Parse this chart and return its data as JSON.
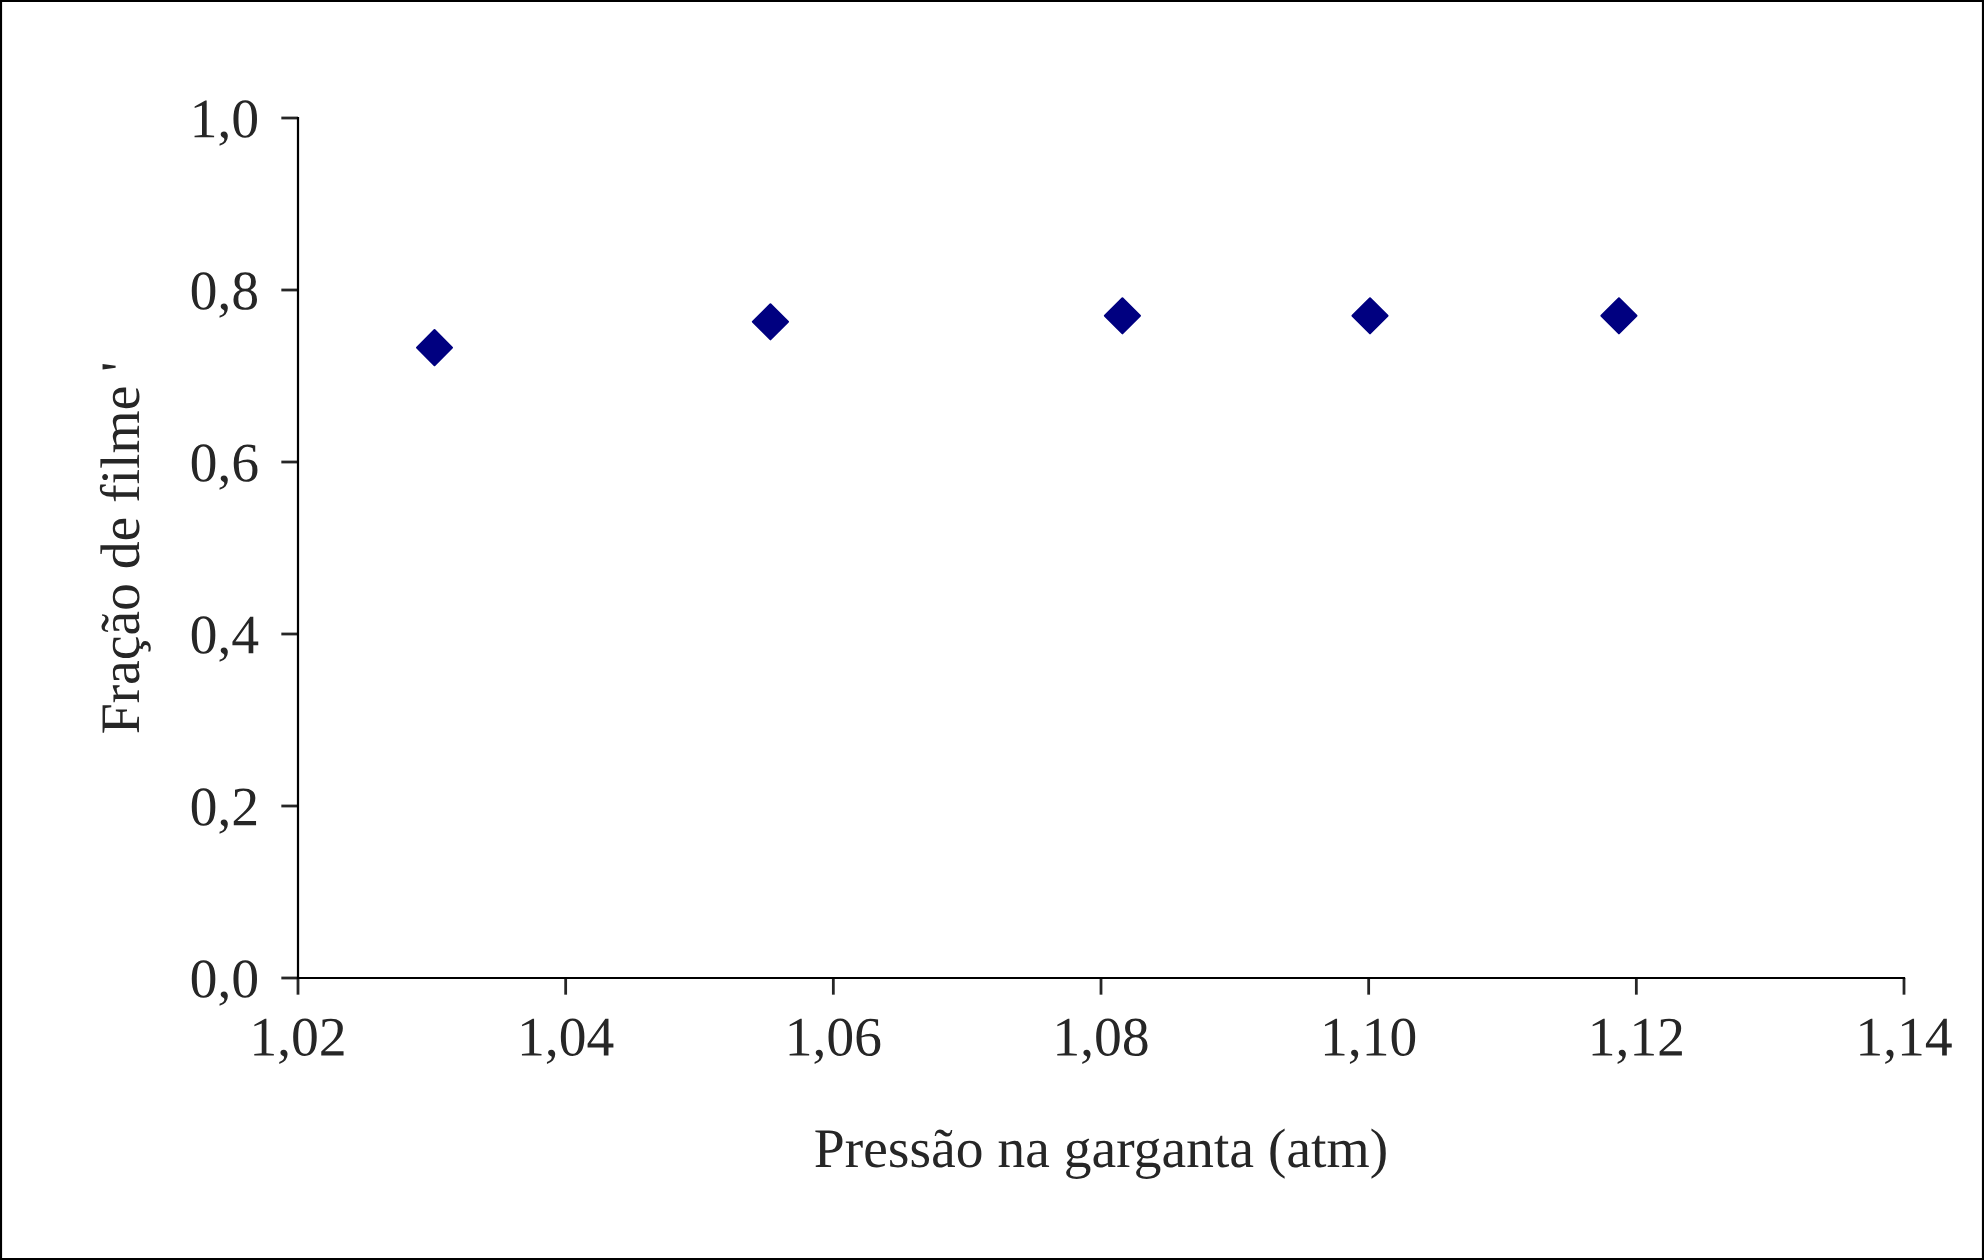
{
  "chart_data": {
    "type": "scatter",
    "xlabel": "Pressão na garganta (atm)",
    "ylabel": "Fração de filme '",
    "x": [
      1.0302,
      1.0553,
      1.0816,
      1.1001,
      1.1187
    ],
    "series": [
      {
        "color": "#000080",
        "values": [
          0.733,
          0.763,
          0.77,
          0.77,
          0.77
        ]
      }
    ],
    "marker": "diamond",
    "grid": false,
    "legend": false,
    "xlim": [
      1.02,
      1.14
    ],
    "xticks": [
      {
        "value": 1.02,
        "label": "1,02"
      },
      {
        "value": 1.04,
        "label": "1,04"
      },
      {
        "value": 1.06,
        "label": "1,06"
      },
      {
        "value": 1.08,
        "label": "1,08"
      },
      {
        "value": 1.1,
        "label": "1,10"
      },
      {
        "value": 1.12,
        "label": "1,12"
      },
      {
        "value": 1.14,
        "label": "1,14"
      }
    ],
    "ylim": [
      0,
      1
    ],
    "yticks": [
      {
        "value": 0,
        "label": "0,0"
      },
      {
        "value": 0.2,
        "label": "0,2"
      },
      {
        "value": 0.4,
        "label": "0,4"
      },
      {
        "value": 0.6,
        "label": "0,6"
      },
      {
        "value": 0.8,
        "label": "0,8"
      },
      {
        "value": 1,
        "label": "1,0"
      }
    ]
  }
}
